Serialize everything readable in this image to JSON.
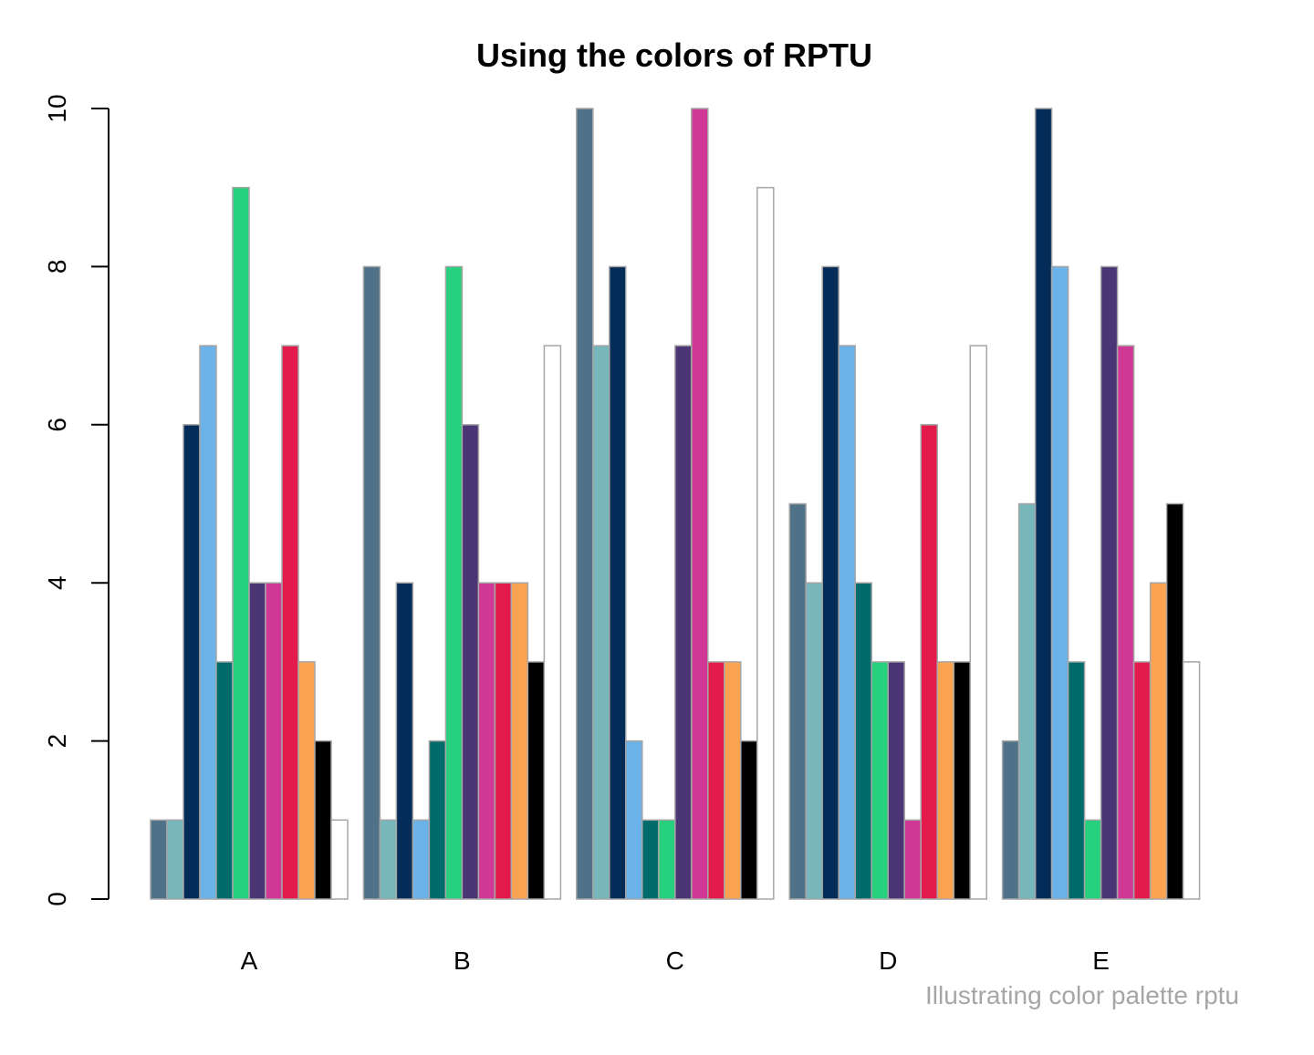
{
  "chart_data": {
    "type": "bar",
    "title": "Using the colors of RPTU",
    "caption": "Illustrating color palette rptu",
    "xlabel": "",
    "ylabel": "",
    "categories": [
      "A",
      "B",
      "C",
      "D",
      "E"
    ],
    "ylim": [
      0,
      10
    ],
    "yticks": [
      "0",
      "2",
      "4",
      "6",
      "8",
      "10"
    ],
    "grid": false,
    "legend": "none",
    "bar_border_color": "#a6a6a6",
    "series": [
      {
        "color": "#507289",
        "values": [
          1,
          8,
          10,
          5,
          2
        ]
      },
      {
        "color": "#77b6ba",
        "values": [
          1,
          1,
          7,
          4,
          5
        ]
      },
      {
        "color": "#042c58",
        "values": [
          6,
          4,
          8,
          8,
          10
        ]
      },
      {
        "color": "#6ab2e7",
        "values": [
          7,
          1,
          2,
          7,
          8
        ]
      },
      {
        "color": "#006b6b",
        "values": [
          3,
          2,
          1,
          4,
          3
        ]
      },
      {
        "color": "#26d07c",
        "values": [
          9,
          8,
          1,
          3,
          1
        ]
      },
      {
        "color": "#4c3575",
        "values": [
          4,
          6,
          7,
          3,
          8
        ]
      },
      {
        "color": "#d13896",
        "values": [
          4,
          4,
          10,
          1,
          7
        ]
      },
      {
        "color": "#e31b4c",
        "values": [
          7,
          4,
          3,
          6,
          3
        ]
      },
      {
        "color": "#fca352",
        "values": [
          3,
          4,
          3,
          3,
          4
        ]
      },
      {
        "color": "#000000",
        "values": [
          2,
          3,
          2,
          3,
          5
        ]
      },
      {
        "color": "#ffffff",
        "values": [
          1,
          7,
          9,
          7,
          3
        ]
      }
    ]
  }
}
